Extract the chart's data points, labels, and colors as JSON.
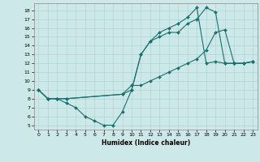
{
  "xlabel": "Humidex (Indice chaleur)",
  "bg_color": "#cce8e8",
  "line_color": "#1a7070",
  "grid_color": "#b0d4d4",
  "xlim": [
    -0.5,
    23.5
  ],
  "ylim": [
    4.5,
    18.8
  ],
  "xticks": [
    0,
    1,
    2,
    3,
    4,
    5,
    6,
    7,
    8,
    9,
    10,
    11,
    12,
    13,
    14,
    15,
    16,
    17,
    18,
    19,
    20,
    21,
    22,
    23
  ],
  "yticks": [
    5,
    6,
    7,
    8,
    9,
    10,
    11,
    12,
    13,
    14,
    15,
    16,
    17,
    18
  ],
  "line1_x": [
    0,
    1,
    2,
    3,
    4,
    5,
    6,
    7,
    8,
    9,
    10,
    11,
    12,
    13,
    14,
    15,
    16,
    17,
    18,
    19,
    20,
    21,
    22,
    23
  ],
  "line1_y": [
    9.0,
    8.0,
    8.0,
    7.5,
    7.0,
    6.0,
    5.5,
    5.0,
    5.0,
    6.5,
    9.0,
    13.0,
    14.5,
    15.0,
    15.5,
    15.5,
    16.5,
    17.0,
    18.3,
    17.8,
    12.0,
    12.0,
    12.0,
    12.2
  ],
  "line2_x": [
    0,
    1,
    2,
    3,
    9,
    10,
    11,
    12,
    13,
    14,
    15,
    16,
    17,
    18,
    19,
    20,
    21,
    22,
    23
  ],
  "line2_y": [
    9.0,
    8.0,
    8.0,
    8.0,
    8.5,
    9.0,
    13.0,
    14.5,
    15.5,
    16.0,
    16.5,
    17.2,
    18.3,
    12.0,
    12.2,
    12.0,
    12.0,
    12.0,
    12.2
  ],
  "line3_x": [
    0,
    1,
    2,
    3,
    9,
    10,
    11,
    12,
    13,
    14,
    15,
    16,
    17,
    18,
    19,
    20,
    21,
    22,
    23
  ],
  "line3_y": [
    9.0,
    8.0,
    8.0,
    8.0,
    8.5,
    9.5,
    9.5,
    10.0,
    10.5,
    11.0,
    11.5,
    12.0,
    12.5,
    13.5,
    15.5,
    15.8,
    12.0,
    12.0,
    12.2
  ]
}
